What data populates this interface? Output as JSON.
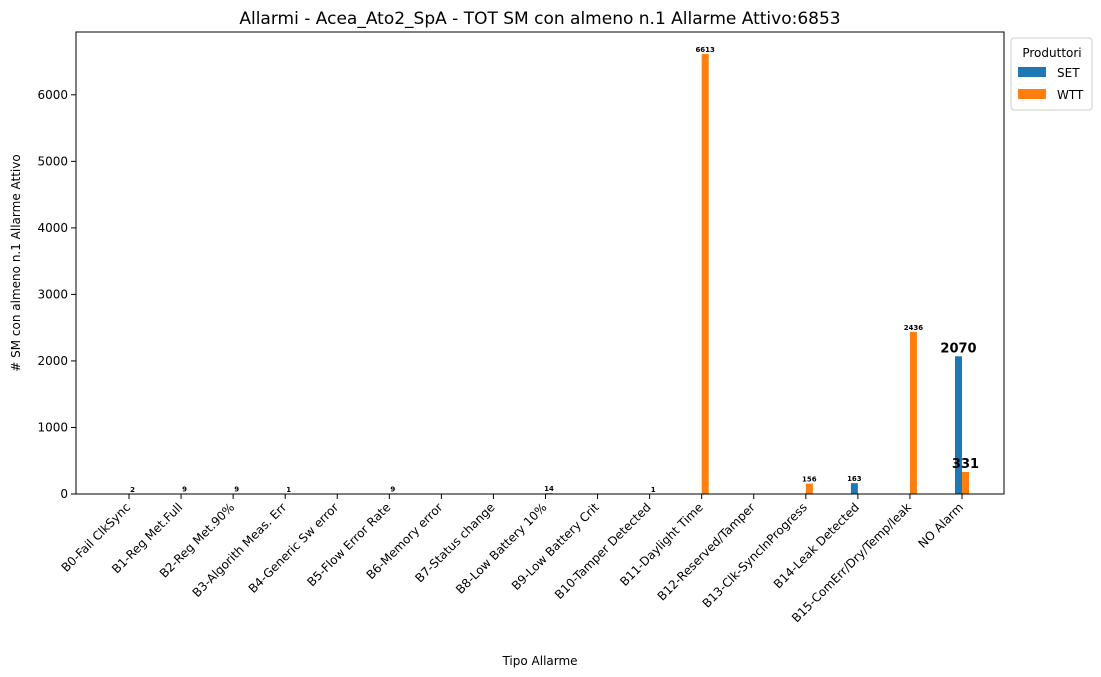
{
  "chart_data": {
    "type": "bar",
    "title": "Allarmi - Acea_Ato2_SpA - TOT SM con almeno n.1 Allarme Attivo:6853",
    "xlabel": "Tipo Allarme",
    "ylabel": "# SM con almeno n.1 Allarme Attivo",
    "ylim": [
      0,
      6944
    ],
    "yticks": [
      0,
      1000,
      2000,
      3000,
      4000,
      5000,
      6000
    ],
    "grid": false,
    "legend_title": "Produttori",
    "legend_position": "outside-top-right",
    "categories": [
      "B0-Fail ClkSync",
      "B1-Reg Met.Full",
      "B2-Reg Met.90%",
      "B3-Algorith Meas. Err",
      "B4-Generic Sw error",
      "B5-Flow Error Rate",
      "B6-Memory error",
      "B7-Status change",
      "B8-Low Battery 10%",
      "B9-Low Battery Crit",
      "B10-Tamper Detected",
      "B11-Daylight Time",
      "B12-Reserved/Tamper",
      "B13-Clk-SyncInProgress",
      "B14-Leak Detected",
      "B15-ComErr/Dry/Temp/leak",
      "NO Alarm"
    ],
    "series": [
      {
        "name": "SET",
        "color": "#1f77b4",
        "values": [
          null,
          null,
          null,
          null,
          null,
          null,
          null,
          null,
          null,
          null,
          null,
          null,
          null,
          null,
          163,
          null,
          2070
        ]
      },
      {
        "name": "WTT",
        "color": "#ff7f0e",
        "values": [
          2,
          9,
          9,
          1,
          null,
          9,
          null,
          null,
          14,
          null,
          1,
          6613,
          null,
          156,
          null,
          2436,
          331
        ]
      }
    ],
    "bar_labels": [
      {
        "category": 0,
        "series": 1,
        "text": "2",
        "style": "small"
      },
      {
        "category": 1,
        "series": 1,
        "text": "9",
        "style": "small"
      },
      {
        "category": 2,
        "series": 1,
        "text": "9",
        "style": "small"
      },
      {
        "category": 3,
        "series": 1,
        "text": "1",
        "style": "small"
      },
      {
        "category": 5,
        "series": 1,
        "text": "9",
        "style": "small"
      },
      {
        "category": 8,
        "series": 1,
        "text": "14",
        "style": "small"
      },
      {
        "category": 10,
        "series": 1,
        "text": "1",
        "style": "small"
      },
      {
        "category": 11,
        "series": 1,
        "text": "6613",
        "style": "small"
      },
      {
        "category": 13,
        "series": 1,
        "text": "156",
        "style": "small"
      },
      {
        "category": 14,
        "series": 0,
        "text": "163",
        "style": "small"
      },
      {
        "category": 15,
        "series": 1,
        "text": "2436",
        "style": "small"
      },
      {
        "category": 16,
        "series": 0,
        "text": "2070",
        "style": "big"
      },
      {
        "category": 16,
        "series": 1,
        "text": "331",
        "style": "big"
      }
    ]
  }
}
